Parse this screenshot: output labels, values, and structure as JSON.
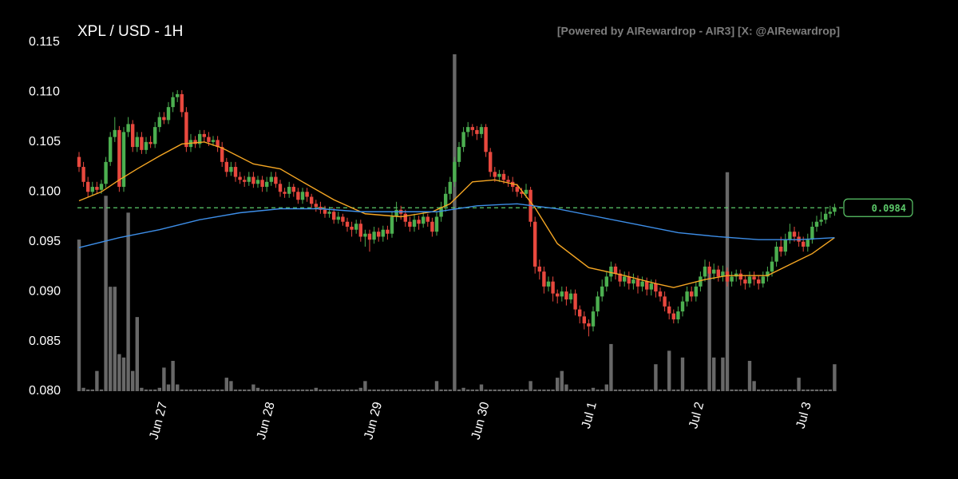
{
  "chart_data": {
    "type": "candlestick",
    "title": "XPL / USD - 1H",
    "subtitle": "[Powered by AIRewardrop - AIR3] [X: @AIRewardrop]",
    "categories": [
      null,
      null,
      null,
      null,
      null,
      null,
      null,
      null,
      null,
      null,
      null,
      null,
      null,
      null,
      null,
      null,
      null,
      null,
      null,
      "Jun 27",
      null,
      null,
      null,
      null,
      null,
      null,
      null,
      null,
      null,
      null,
      null,
      null,
      null,
      null,
      null,
      null,
      null,
      null,
      null,
      null,
      null,
      null,
      null,
      "Jun 28",
      null,
      null,
      null,
      null,
      null,
      null,
      null,
      null,
      null,
      null,
      null,
      null,
      null,
      null,
      null,
      null,
      null,
      null,
      null,
      null,
      null,
      null,
      null,
      "Jun 29",
      null,
      null,
      null,
      null,
      null,
      null,
      null,
      null,
      null,
      null,
      null,
      null,
      null,
      null,
      null,
      null,
      null,
      null,
      null,
      null,
      null,
      null,
      null,
      "Jun 30",
      null,
      null,
      null,
      null,
      null,
      null,
      null,
      null,
      null,
      null,
      null,
      null,
      null,
      null,
      null,
      null,
      null,
      null,
      null,
      null,
      null,
      null,
      null,
      "Jul 1",
      null,
      null,
      null,
      null,
      null,
      null,
      null,
      null,
      null,
      null,
      null,
      null,
      null,
      null,
      null,
      null,
      null,
      null,
      null,
      null,
      null,
      null,
      null,
      "Jul 2",
      null,
      null,
      null,
      null,
      null,
      null,
      null,
      null,
      null,
      null,
      null,
      null,
      null,
      null,
      null,
      null,
      null,
      null,
      null,
      null,
      null,
      null,
      null,
      "Jul 3",
      null,
      null,
      null,
      null,
      null,
      null
    ],
    "open": [
      0.1035,
      0.1025,
      0.101,
      0.1,
      0.1005,
      0.1002,
      0.1008,
      0.103,
      0.1055,
      0.1062,
      0.1005,
      0.106,
      0.1068,
      0.1045,
      0.1055,
      0.1042,
      0.105,
      0.1048,
      0.1065,
      0.1075,
      0.1072,
      0.1085,
      0.1095,
      0.1098,
      0.108,
      0.1045,
      0.1052,
      0.1048,
      0.1058,
      0.1055,
      0.105,
      0.1052,
      0.1045,
      0.103,
      0.102,
      0.1025,
      0.1015,
      0.1012,
      0.101,
      0.1015,
      0.1008,
      0.1012,
      0.1005,
      0.101,
      0.1015,
      0.1008,
      0.1,
      0.0998,
      0.1005,
      0.1,
      0.0992,
      0.1,
      0.0995,
      0.0988,
      0.0985,
      0.0982,
      0.0978,
      0.098,
      0.0972,
      0.0975,
      0.097,
      0.0965,
      0.0962,
      0.0968,
      0.0955,
      0.0958,
      0.0952,
      0.096,
      0.0955,
      0.0962,
      0.0958,
      0.0975,
      0.0982,
      0.0978,
      0.097,
      0.0965,
      0.0972,
      0.0968,
      0.0975,
      0.097,
      0.096,
      0.0975,
      0.0985,
      0.0998,
      0.101,
      0.103,
      0.1045,
      0.106,
      0.1065,
      0.1062,
      0.1058,
      0.1065,
      0.104,
      0.102,
      0.1015,
      0.1018,
      0.1012,
      0.101,
      0.1005,
      0.1,
      0.0998,
      0.1002,
      0.097,
      0.0925,
      0.092,
      0.0905,
      0.091,
      0.0898,
      0.0895,
      0.09,
      0.0892,
      0.0898,
      0.0882,
      0.0875,
      0.0868,
      0.0865,
      0.088,
      0.0895,
      0.0905,
      0.0915,
      0.0925,
      0.0918,
      0.091,
      0.0915,
      0.0908,
      0.0912,
      0.0905,
      0.091,
      0.0902,
      0.0908,
      0.09,
      0.0895,
      0.0885,
      0.0878,
      0.0872,
      0.088,
      0.089,
      0.09,
      0.0895,
      0.0905,
      0.0915,
      0.0925,
      0.0918,
      0.0922,
      0.0915,
      0.092,
      0.091,
      0.0915,
      0.0918,
      0.0912,
      0.0908,
      0.0915,
      0.0912,
      0.0908,
      0.0915,
      0.092,
      0.093,
      0.0945,
      0.094,
      0.0952,
      0.096,
      0.0955,
      0.095,
      0.0945,
      0.0952,
      0.0965,
      0.097,
      0.0972,
      0.0978,
      0.098
    ],
    "high": [
      0.104,
      0.103,
      0.1015,
      0.101,
      0.101,
      0.1012,
      0.1035,
      0.106,
      0.1075,
      0.1066,
      0.1065,
      0.1075,
      0.1072,
      0.106,
      0.106,
      0.1055,
      0.1056,
      0.107,
      0.108,
      0.108,
      0.109,
      0.11,
      0.1102,
      0.1102,
      0.1085,
      0.1058,
      0.1056,
      0.1062,
      0.1062,
      0.106,
      0.1056,
      0.1056,
      0.105,
      0.1034,
      0.103,
      0.103,
      0.102,
      0.1016,
      0.102,
      0.102,
      0.1016,
      0.1016,
      0.1015,
      0.102,
      0.102,
      0.1012,
      0.1004,
      0.101,
      0.1008,
      0.1004,
      0.1004,
      0.1004,
      0.0998,
      0.0992,
      0.099,
      0.0986,
      0.0985,
      0.0984,
      0.098,
      0.0978,
      0.0974,
      0.097,
      0.0972,
      0.0972,
      0.0962,
      0.0962,
      0.0965,
      0.0964,
      0.0966,
      0.0966,
      0.098,
      0.099,
      0.0986,
      0.0982,
      0.0975,
      0.0978,
      0.0976,
      0.098,
      0.0978,
      0.0974,
      0.098,
      0.099,
      0.1005,
      0.1015,
      0.1035,
      0.105,
      0.1065,
      0.107,
      0.1068,
      0.1066,
      0.1068,
      0.1068,
      0.1044,
      0.1025,
      0.1022,
      0.1022,
      0.1016,
      0.1015,
      0.1008,
      0.1004,
      0.1008,
      0.1005,
      0.0975,
      0.0932,
      0.0925,
      0.0915,
      0.0915,
      0.0902,
      0.0905,
      0.0905,
      0.0902,
      0.0902,
      0.0886,
      0.088,
      0.0872,
      0.0885,
      0.09,
      0.0912,
      0.092,
      0.093,
      0.0928,
      0.0922,
      0.092,
      0.092,
      0.0918,
      0.0916,
      0.0915,
      0.0914,
      0.0912,
      0.0912,
      0.0904,
      0.09,
      0.089,
      0.0882,
      0.0885,
      0.0895,
      0.0905,
      0.0905,
      0.091,
      0.092,
      0.0932,
      0.093,
      0.0928,
      0.0926,
      0.0926,
      0.0924,
      0.092,
      0.0922,
      0.0922,
      0.0916,
      0.092,
      0.092,
      0.0916,
      0.092,
      0.0925,
      0.0935,
      0.095,
      0.0955,
      0.0958,
      0.0968,
      0.0965,
      0.096,
      0.0955,
      0.0958,
      0.097,
      0.0976,
      0.098,
      0.0984,
      0.0986,
      0.0988
    ],
    "low": [
      0.102,
      0.1005,
      0.0995,
      0.0996,
      0.0998,
      0.0998,
      0.1004,
      0.1026,
      0.105,
      0.1,
      0.1,
      0.1055,
      0.104,
      0.104,
      0.1038,
      0.1038,
      0.1044,
      0.1044,
      0.106,
      0.1068,
      0.1068,
      0.108,
      0.109,
      0.1075,
      0.104,
      0.104,
      0.1044,
      0.1044,
      0.105,
      0.1046,
      0.1046,
      0.104,
      0.1025,
      0.1015,
      0.1016,
      0.101,
      0.1008,
      0.1005,
      0.1006,
      0.1004,
      0.1004,
      0.1,
      0.1,
      0.1006,
      0.1004,
      0.0995,
      0.0994,
      0.0994,
      0.0995,
      0.0988,
      0.0988,
      0.099,
      0.0984,
      0.098,
      0.0978,
      0.0974,
      0.0974,
      0.0968,
      0.0968,
      0.0966,
      0.096,
      0.0955,
      0.0958,
      0.095,
      0.0945,
      0.094,
      0.0948,
      0.095,
      0.095,
      0.0952,
      0.0954,
      0.097,
      0.0972,
      0.0965,
      0.096,
      0.096,
      0.0962,
      0.0964,
      0.0965,
      0.0955,
      0.0956,
      0.097,
      0.098,
      0.0992,
      0.1005,
      0.1025,
      0.104,
      0.1055,
      0.1056,
      0.1052,
      0.1054,
      0.1035,
      0.1015,
      0.101,
      0.101,
      0.1008,
      0.1005,
      0.1,
      0.0995,
      0.0994,
      0.0994,
      0.0965,
      0.0918,
      0.0912,
      0.0898,
      0.09,
      0.089,
      0.0888,
      0.089,
      0.0886,
      0.0888,
      0.0876,
      0.0868,
      0.0862,
      0.0855,
      0.086,
      0.0875,
      0.089,
      0.09,
      0.091,
      0.0912,
      0.0905,
      0.0905,
      0.0902,
      0.0902,
      0.0898,
      0.09,
      0.0896,
      0.0896,
      0.0894,
      0.089,
      0.088,
      0.0872,
      0.0868,
      0.0868,
      0.0875,
      0.0885,
      0.089,
      0.089,
      0.09,
      0.091,
      0.0912,
      0.0912,
      0.091,
      0.091,
      0.0905,
      0.0905,
      0.091,
      0.0906,
      0.0902,
      0.0904,
      0.0906,
      0.0902,
      0.0904,
      0.091,
      0.0915,
      0.0925,
      0.0935,
      0.0936,
      0.0948,
      0.095,
      0.0945,
      0.094,
      0.094,
      0.0948,
      0.096,
      0.0966,
      0.0968,
      0.0974,
      0.0976
    ],
    "close": [
      0.1025,
      0.101,
      0.1,
      0.1005,
      0.1002,
      0.1008,
      0.103,
      0.1055,
      0.1062,
      0.1005,
      0.106,
      0.1068,
      0.1045,
      0.1055,
      0.1042,
      0.105,
      0.1048,
      0.1065,
      0.1075,
      0.1072,
      0.1085,
      0.1095,
      0.1098,
      0.108,
      0.1045,
      0.1052,
      0.1048,
      0.1058,
      0.1055,
      0.105,
      0.1052,
      0.1045,
      0.103,
      0.102,
      0.1025,
      0.1015,
      0.1012,
      0.101,
      0.1015,
      0.1008,
      0.1012,
      0.1005,
      0.101,
      0.1015,
      0.1008,
      0.1,
      0.0998,
      0.1005,
      0.1,
      0.0992,
      0.1,
      0.0995,
      0.0988,
      0.0985,
      0.0982,
      0.0978,
      0.098,
      0.0972,
      0.0975,
      0.097,
      0.0965,
      0.0962,
      0.0968,
      0.0955,
      0.0958,
      0.0952,
      0.096,
      0.0955,
      0.0962,
      0.0958,
      0.0975,
      0.0982,
      0.0978,
      0.097,
      0.0965,
      0.0972,
      0.0968,
      0.0975,
      0.097,
      0.096,
      0.0975,
      0.0985,
      0.0998,
      0.101,
      0.103,
      0.1045,
      0.106,
      0.1065,
      0.1062,
      0.1058,
      0.1065,
      0.104,
      0.102,
      0.1015,
      0.1018,
      0.1012,
      0.101,
      0.1005,
      0.1,
      0.0998,
      0.1002,
      0.097,
      0.0925,
      0.092,
      0.0905,
      0.091,
      0.0898,
      0.0895,
      0.09,
      0.0892,
      0.0898,
      0.0882,
      0.0875,
      0.0868,
      0.0865,
      0.088,
      0.0895,
      0.0905,
      0.0915,
      0.0925,
      0.0918,
      0.091,
      0.0915,
      0.0908,
      0.0912,
      0.0905,
      0.091,
      0.0902,
      0.0908,
      0.09,
      0.0895,
      0.0885,
      0.0878,
      0.0872,
      0.088,
      0.089,
      0.09,
      0.0895,
      0.0905,
      0.0915,
      0.0925,
      0.0918,
      0.0922,
      0.0915,
      0.092,
      0.091,
      0.0915,
      0.0918,
      0.0912,
      0.0908,
      0.0915,
      0.0912,
      0.0908,
      0.0915,
      0.092,
      0.093,
      0.0945,
      0.094,
      0.0952,
      0.096,
      0.0955,
      0.095,
      0.0945,
      0.0952,
      0.0965,
      0.097,
      0.0972,
      0.0978,
      0.098,
      0.0984
    ],
    "volume": [
      45,
      1,
      0.5,
      0.5,
      6,
      0.5,
      58,
      31,
      31,
      11,
      10,
      53,
      6,
      22,
      1,
      0.5,
      0.5,
      0.5,
      1,
      7,
      2,
      9,
      2,
      0.5,
      0.5,
      0.5,
      0.5,
      0.5,
      0.5,
      0.5,
      0.5,
      0.5,
      0.5,
      4,
      3,
      0.5,
      0.5,
      0.5,
      0.5,
      2,
      1,
      0.5,
      0.5,
      0.5,
      0.5,
      0.5,
      0.5,
      0.5,
      0.5,
      0.5,
      0.5,
      0.5,
      0.5,
      1,
      0.5,
      0.5,
      0.5,
      0.5,
      0.5,
      0.5,
      0.5,
      0.5,
      0.5,
      1,
      3,
      0.5,
      0.5,
      0.5,
      0.5,
      0.5,
      0.5,
      0.5,
      0.5,
      0.5,
      0.5,
      0.5,
      0.5,
      0.5,
      0.5,
      0.5,
      3,
      0.5,
      0.5,
      0.5,
      100,
      0.5,
      1,
      0.5,
      0.5,
      0.5,
      2,
      0.5,
      0.5,
      0.5,
      0.5,
      0.5,
      0.5,
      0.5,
      0.5,
      0.5,
      0.5,
      3,
      0.5,
      0.5,
      0.5,
      0.5,
      0.5,
      4,
      6,
      2,
      0.5,
      0.5,
      0.5,
      0.5,
      0.5,
      1,
      0.5,
      0.5,
      2,
      14,
      0.5,
      0.5,
      0.5,
      0.5,
      0.5,
      0.5,
      0.5,
      0.5,
      0.5,
      8,
      0.5,
      0.5,
      12,
      0.5,
      0.5,
      10,
      0.5,
      0.5,
      0.5,
      0.5,
      0.5,
      35,
      10,
      0.5,
      10,
      65,
      0.5,
      0.5,
      0.5,
      0.5,
      9,
      3,
      0.5,
      0.5,
      0.5,
      0.5,
      0.5,
      0.5,
      0.5,
      0.5,
      0.5,
      4,
      0.5,
      0.5,
      0.5,
      0.5,
      0.5,
      0.5,
      0.5,
      8
    ],
    "up_color": "#4caf50",
    "down_color": "#e8483e",
    "volume_color": "#7a7a7a",
    "lines": [
      {
        "color": "#f5a623",
        "x": [
          0,
          5,
          9,
          13,
          18,
          23,
          28,
          32,
          39,
          45,
          50,
          57,
          64,
          72,
          79,
          83,
          88,
          93,
          98,
          102,
          107,
          114,
          122,
          129,
          133,
          140,
          145,
          154,
          159,
          164,
          169
        ],
        "values": [
          0.0991,
          0.1,
          0.1012,
          0.1023,
          0.1036,
          0.1048,
          0.105,
          0.1044,
          0.1028,
          0.1023,
          0.101,
          0.0992,
          0.0978,
          0.0975,
          0.098,
          0.0988,
          0.101,
          0.1012,
          0.1007,
          0.0984,
          0.0948,
          0.0924,
          0.0916,
          0.0908,
          0.0904,
          0.0912,
          0.0916,
          0.0916,
          0.0927,
          0.0938,
          0.0954
        ]
      },
      {
        "color": "#3d8ee8",
        "x": [
          0,
          9,
          18,
          27,
          36,
          45,
          54,
          63,
          72,
          80,
          89,
          98,
          107,
          116,
          125,
          134,
          143,
          152,
          161,
          169
        ],
        "values": [
          0.0944,
          0.0954,
          0.0962,
          0.0972,
          0.0979,
          0.0983,
          0.0983,
          0.098,
          0.098,
          0.098,
          0.0986,
          0.0988,
          0.0983,
          0.0975,
          0.0967,
          0.0959,
          0.0955,
          0.0952,
          0.0952,
          0.0954
        ]
      }
    ],
    "last_price": 0.0984,
    "last_price_color": "#5cc96a",
    "ylim": [
      0.08,
      0.115
    ],
    "yticks": [
      {
        "value": 0.08,
        "label": "0.080"
      },
      0.085,
      {
        "value": 0.09,
        "label": "0.090"
      },
      0.095,
      {
        "value": 0.1,
        "label": "0.100"
      },
      0.105,
      {
        "value": 0.11,
        "label": "0.110"
      },
      0.115
    ]
  }
}
